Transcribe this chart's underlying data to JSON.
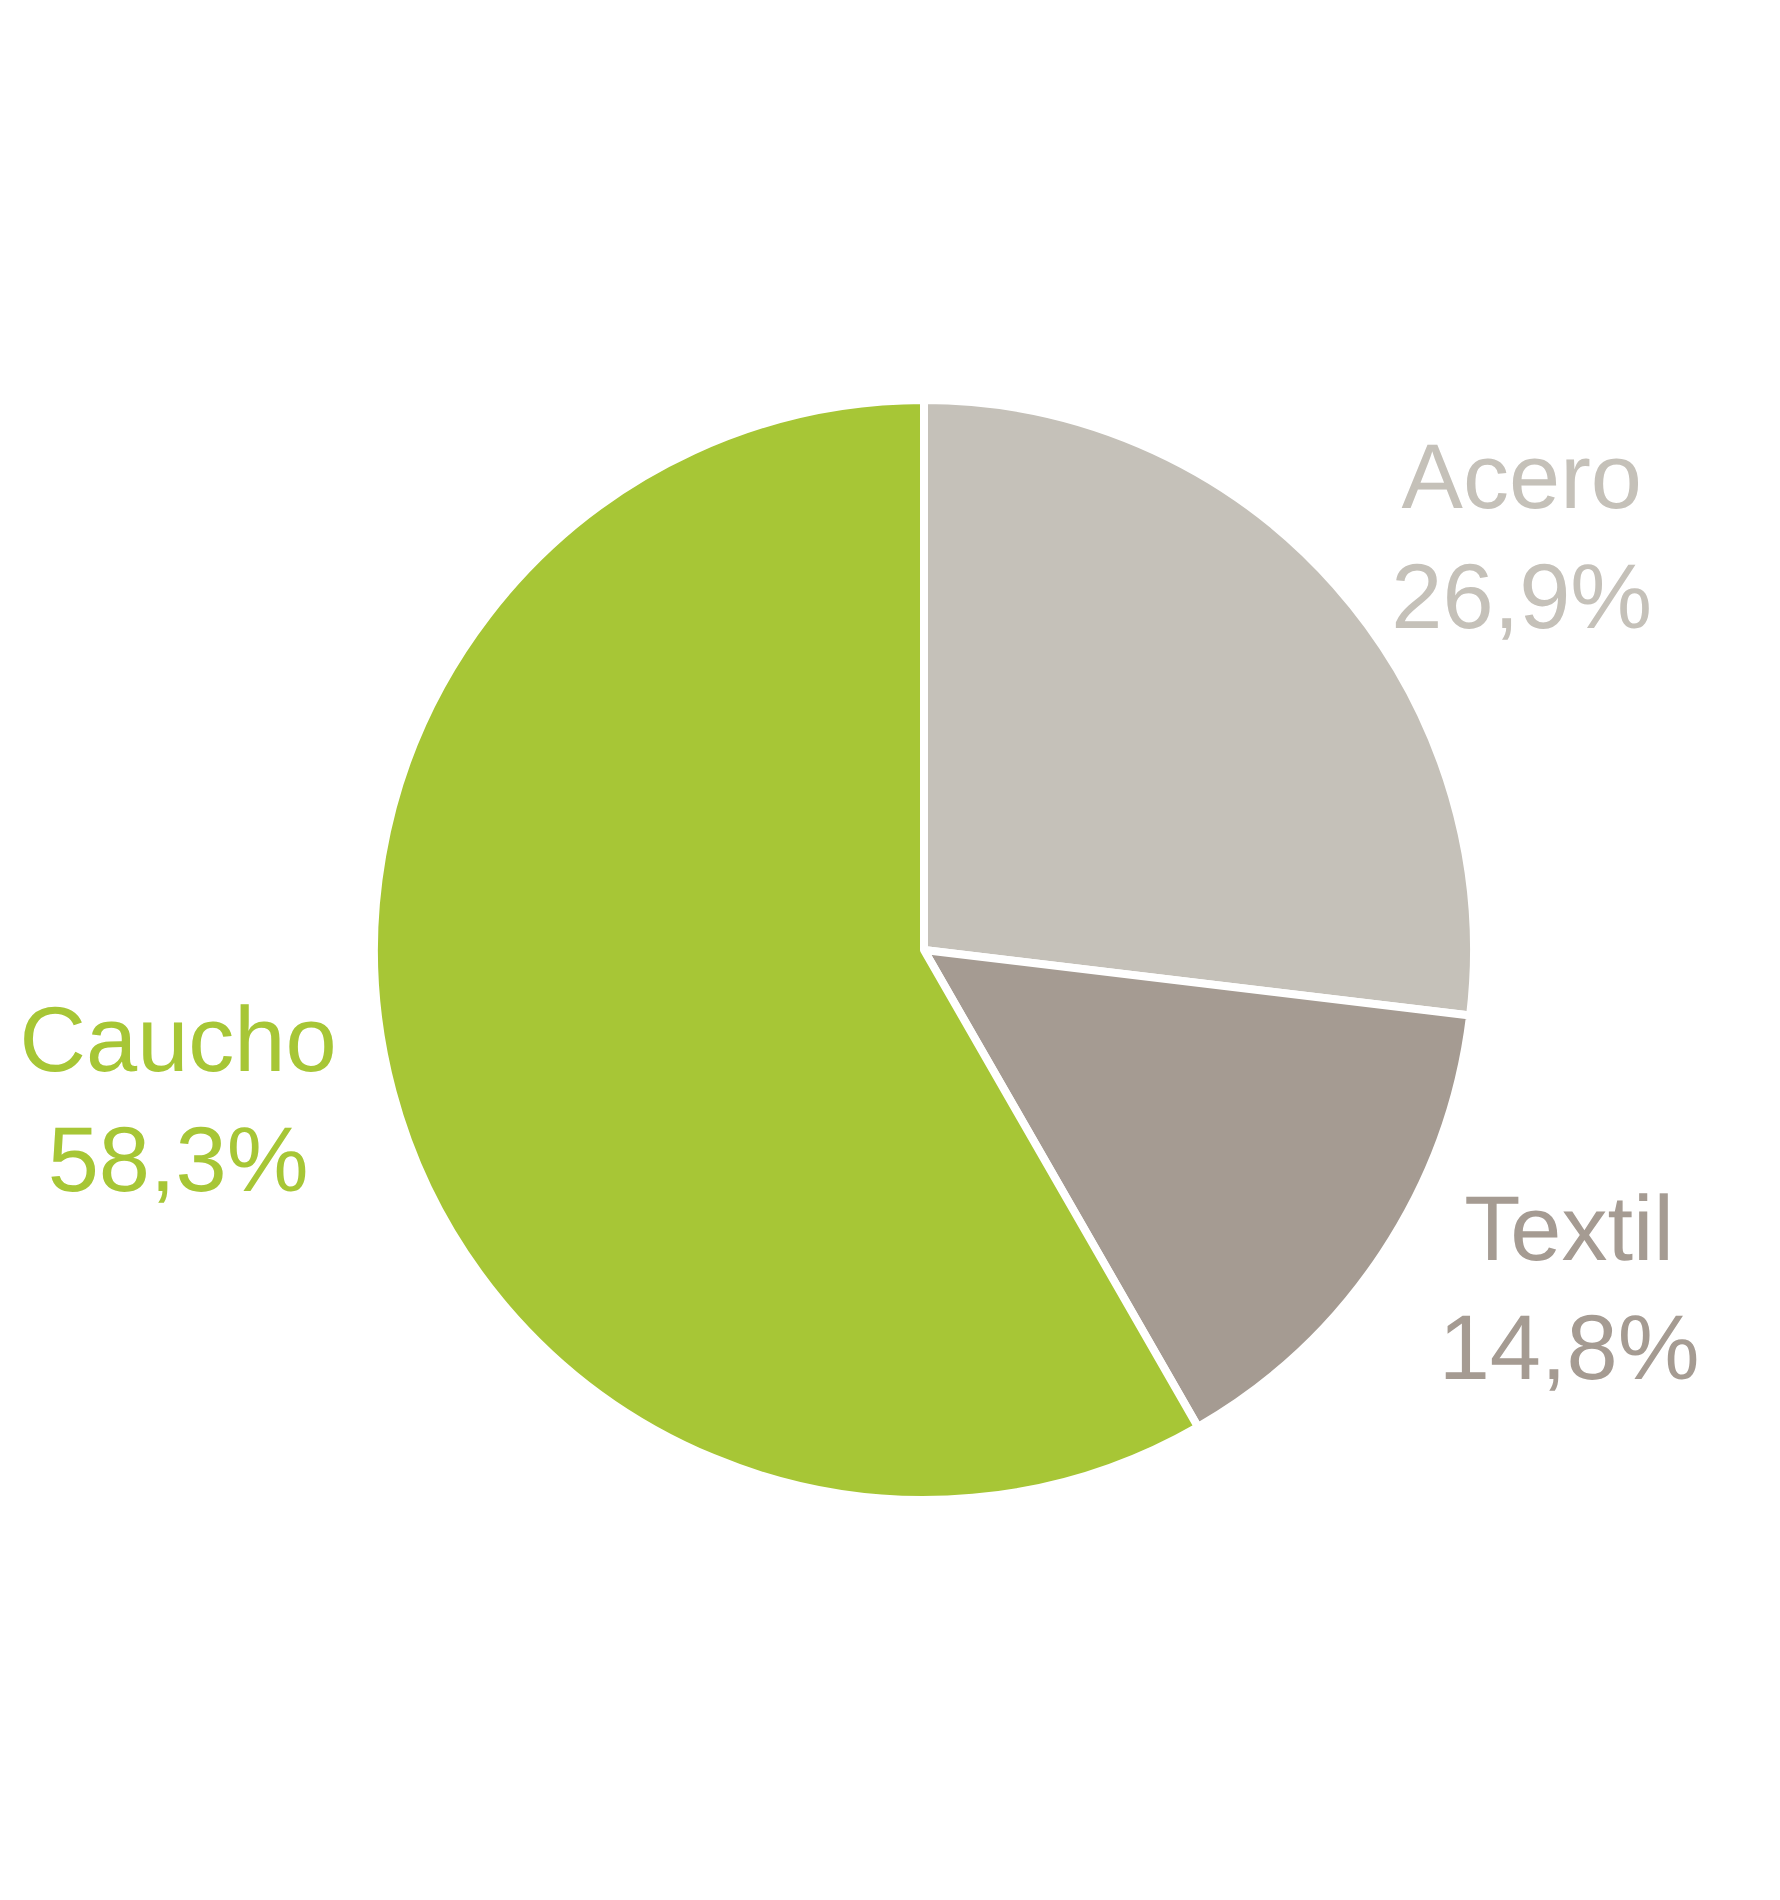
{
  "chart_data": {
    "type": "pie",
    "categories": [
      "Acero",
      "Textil",
      "Caucho"
    ],
    "values": [
      26.9,
      14.8,
      58.3
    ],
    "colors": [
      "#c5c1b9",
      "#a59b92",
      "#a7c636"
    ],
    "value_labels": [
      "26,9%",
      "14,8%",
      "58,3%"
    ],
    "legend": false
  }
}
